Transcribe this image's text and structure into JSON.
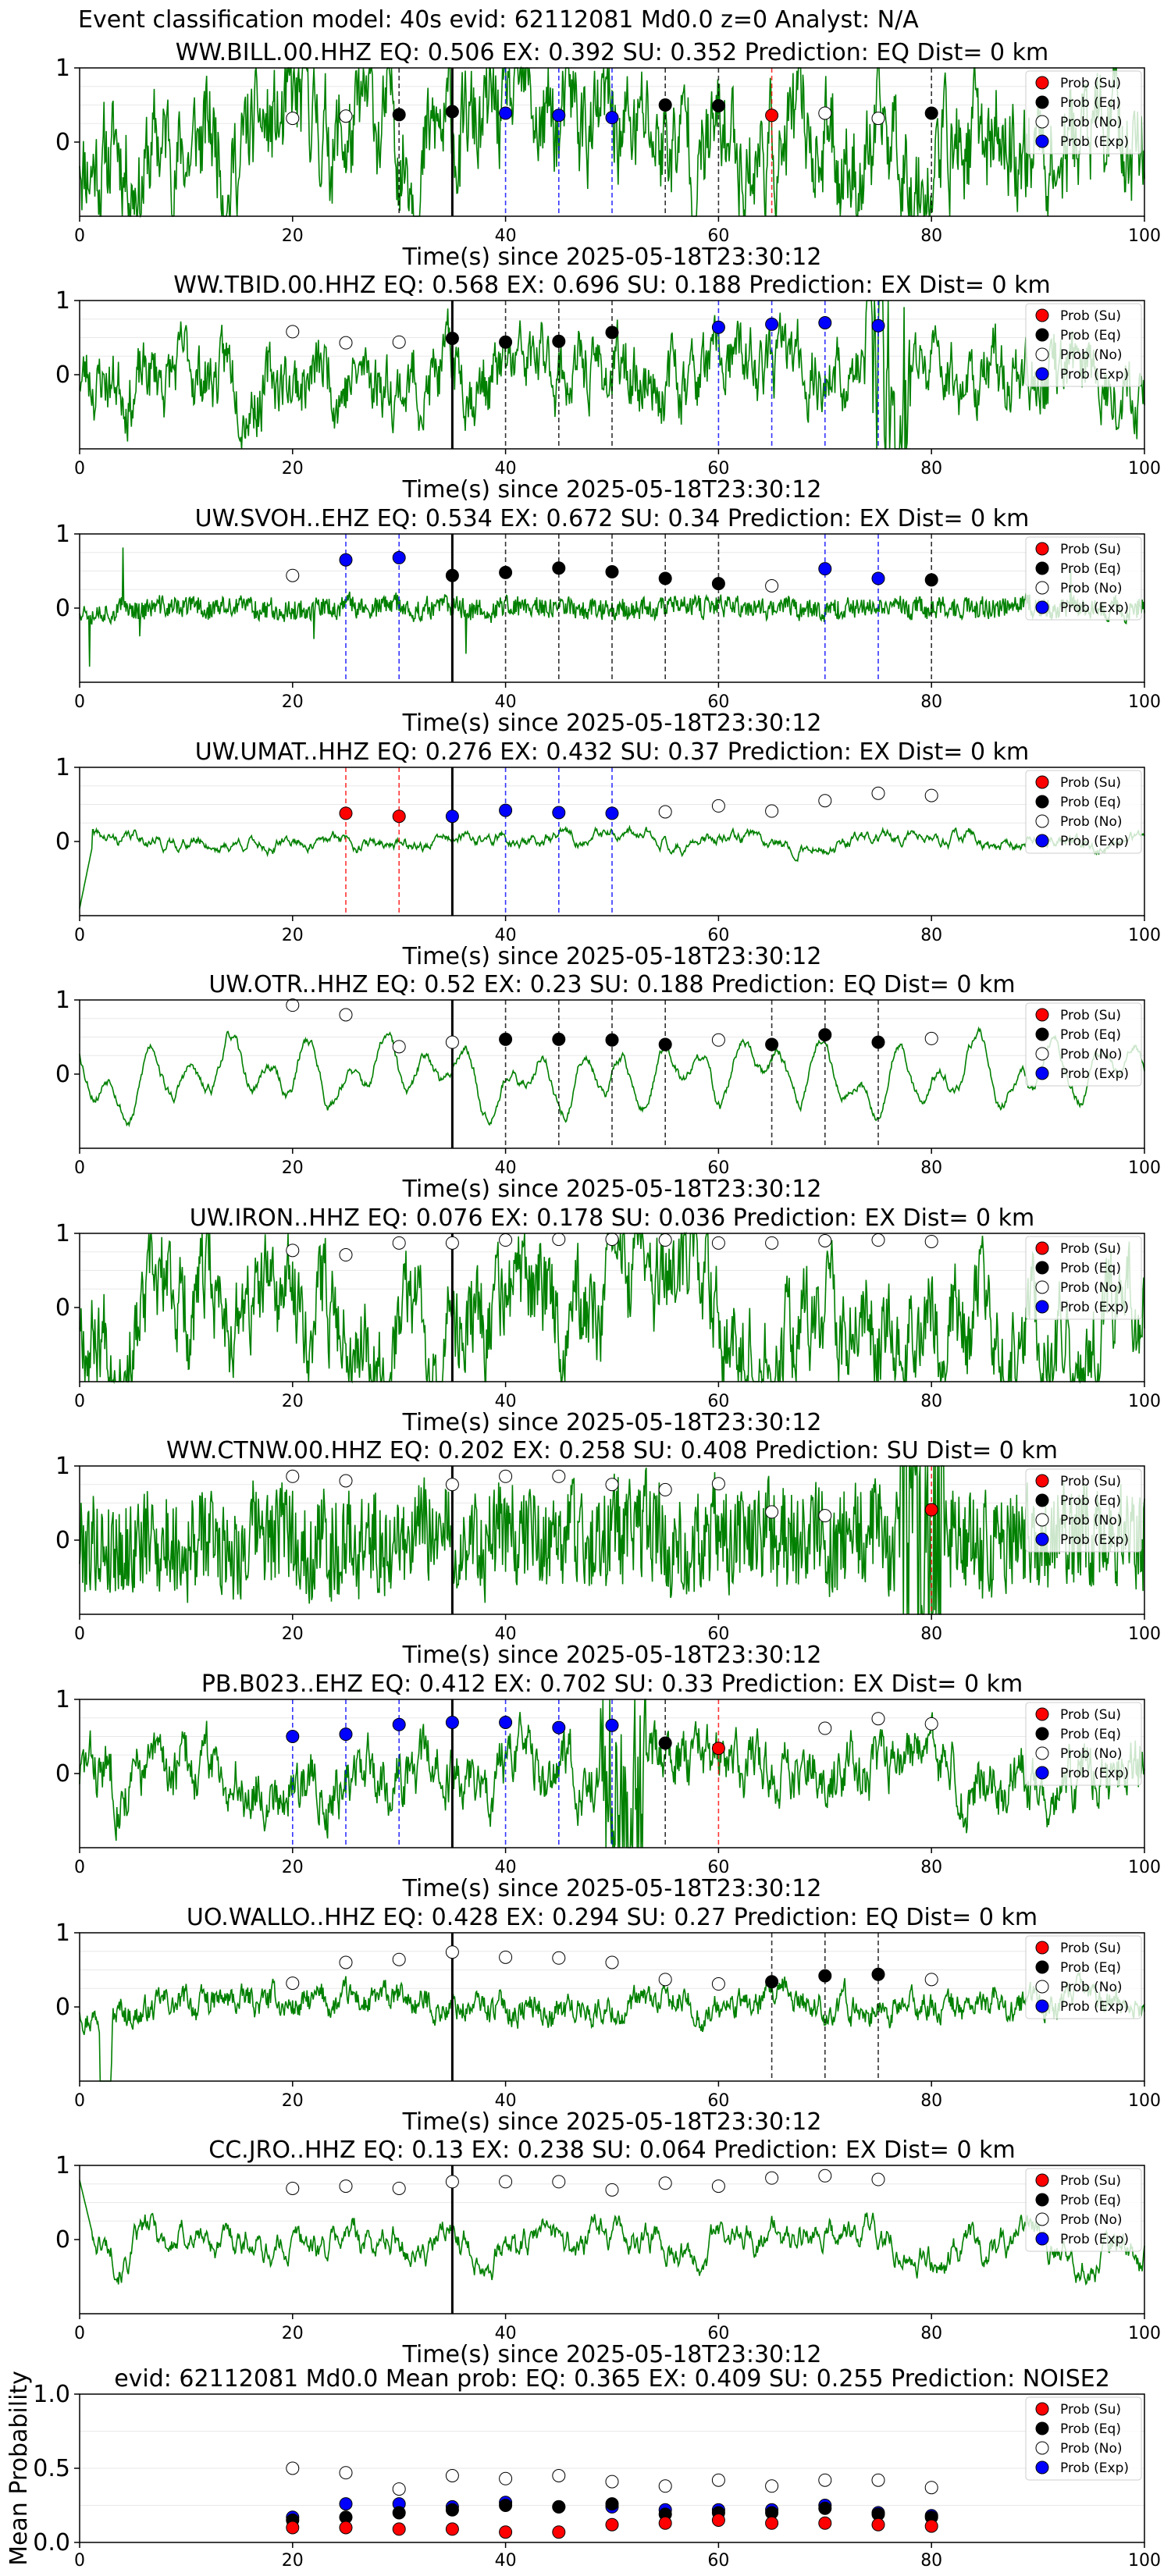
{
  "figure_title": "Event classification model: 40s evid: 62112081 Md0.0 z=0 Analyst: N/A",
  "legend_labels": [
    "Prob (Su)",
    "Prob (Eq)",
    "Prob (No)",
    "Prob (Exp)"
  ],
  "class_colors": {
    "su": "#ff0000",
    "eq": "#000000",
    "no": "#ffffff",
    "exp": "#0000ff"
  },
  "trace_color": "#008000",
  "chart_data": [
    {
      "type": "line",
      "title": "WW.BILL.00.HHZ   EQ: 0.506  EX: 0.392  SU: 0.352   Prediction: EQ    Dist= 0 km",
      "xlabel": "Time(s) since 2025-05-18T23:30:12",
      "xlim": [
        0,
        100
      ],
      "ylim": [
        -1,
        1
      ],
      "xticks": [
        "0",
        "20",
        "40",
        "60",
        "80",
        "100"
      ],
      "yticks": [
        "1",
        "0"
      ],
      "p_arrival": 35,
      "seed": 11,
      "amp": 0.6,
      "style": "noise",
      "points": [
        {
          "t": 20,
          "p": 0.32,
          "c": "no"
        },
        {
          "t": 25,
          "p": 0.35,
          "c": "no"
        },
        {
          "t": 30,
          "p": 0.37,
          "c": "eq"
        },
        {
          "t": 35,
          "p": 0.41,
          "c": "eq"
        },
        {
          "t": 40,
          "p": 0.39,
          "c": "exp"
        },
        {
          "t": 45,
          "p": 0.36,
          "c": "exp"
        },
        {
          "t": 50,
          "p": 0.33,
          "c": "exp"
        },
        {
          "t": 55,
          "p": 0.5,
          "c": "eq"
        },
        {
          "t": 60,
          "p": 0.49,
          "c": "eq"
        },
        {
          "t": 65,
          "p": 0.36,
          "c": "su"
        },
        {
          "t": 70,
          "p": 0.39,
          "c": "no"
        },
        {
          "t": 75,
          "p": 0.32,
          "c": "no"
        },
        {
          "t": 80,
          "p": 0.39,
          "c": "eq"
        }
      ]
    },
    {
      "type": "line",
      "title": "WW.TBID.00.HHZ   EQ: 0.568  EX: 0.696  SU: 0.188   Prediction: EX    Dist= 0 km",
      "xlabel": "Time(s) since 2025-05-18T23:30:12",
      "xlim": [
        0,
        100
      ],
      "ylim": [
        -1,
        1
      ],
      "xticks": [
        "0",
        "20",
        "40",
        "60",
        "80",
        "100"
      ],
      "yticks": [
        "1",
        "0"
      ],
      "p_arrival": 35,
      "seed": 23,
      "amp": 0.35,
      "style": "noise",
      "burst": 76,
      "points": [
        {
          "t": 20,
          "p": 0.58,
          "c": "no"
        },
        {
          "t": 25,
          "p": 0.43,
          "c": "no"
        },
        {
          "t": 30,
          "p": 0.44,
          "c": "no"
        },
        {
          "t": 35,
          "p": 0.49,
          "c": "eq"
        },
        {
          "t": 40,
          "p": 0.44,
          "c": "eq"
        },
        {
          "t": 45,
          "p": 0.45,
          "c": "eq"
        },
        {
          "t": 50,
          "p": 0.57,
          "c": "eq"
        },
        {
          "t": 60,
          "p": 0.64,
          "c": "exp"
        },
        {
          "t": 65,
          "p": 0.68,
          "c": "exp"
        },
        {
          "t": 70,
          "p": 0.7,
          "c": "exp"
        },
        {
          "t": 75,
          "p": 0.66,
          "c": "exp"
        }
      ]
    },
    {
      "type": "line",
      "title": "UW.SVOH..EHZ   EQ: 0.534  EX: 0.672  SU: 0.34   Prediction: EX    Dist= 0 km",
      "xlabel": "Time(s) since 2025-05-18T23:30:12",
      "xlim": [
        0,
        100
      ],
      "ylim": [
        -1,
        1
      ],
      "xticks": [
        "0",
        "20",
        "40",
        "60",
        "80",
        "100"
      ],
      "yticks": [
        "1",
        "0"
      ],
      "p_arrival": 35,
      "seed": 37,
      "amp": 0.18,
      "style": "spiky",
      "points": [
        {
          "t": 20,
          "p": 0.44,
          "c": "no"
        },
        {
          "t": 25,
          "p": 0.65,
          "c": "exp"
        },
        {
          "t": 30,
          "p": 0.68,
          "c": "exp"
        },
        {
          "t": 35,
          "p": 0.44,
          "c": "eq"
        },
        {
          "t": 40,
          "p": 0.48,
          "c": "eq"
        },
        {
          "t": 45,
          "p": 0.54,
          "c": "eq"
        },
        {
          "t": 50,
          "p": 0.49,
          "c": "eq"
        },
        {
          "t": 55,
          "p": 0.4,
          "c": "eq"
        },
        {
          "t": 60,
          "p": 0.33,
          "c": "eq"
        },
        {
          "t": 65,
          "p": 0.3,
          "c": "no"
        },
        {
          "t": 70,
          "p": 0.53,
          "c": "exp"
        },
        {
          "t": 75,
          "p": 0.4,
          "c": "exp"
        },
        {
          "t": 80,
          "p": 0.38,
          "c": "eq"
        }
      ]
    },
    {
      "type": "line",
      "title": "UW.UMAT..HHZ   EQ: 0.276  EX: 0.432  SU: 0.37   Prediction: EX    Dist= 0 km",
      "xlabel": "Time(s) since 2025-05-18T23:30:12",
      "xlim": [
        0,
        100
      ],
      "ylim": [
        -1,
        1
      ],
      "xticks": [
        "0",
        "20",
        "40",
        "60",
        "80",
        "100"
      ],
      "yticks": [
        "1",
        "0"
      ],
      "p_arrival": 35,
      "seed": 41,
      "amp": 0.14,
      "style": "smoothish",
      "start_drop": true,
      "points": [
        {
          "t": 25,
          "p": 0.38,
          "c": "su"
        },
        {
          "t": 30,
          "p": 0.34,
          "c": "su"
        },
        {
          "t": 35,
          "p": 0.34,
          "c": "exp"
        },
        {
          "t": 40,
          "p": 0.42,
          "c": "exp"
        },
        {
          "t": 45,
          "p": 0.39,
          "c": "exp"
        },
        {
          "t": 50,
          "p": 0.38,
          "c": "exp"
        },
        {
          "t": 55,
          "p": 0.4,
          "c": "no"
        },
        {
          "t": 60,
          "p": 0.48,
          "c": "no"
        },
        {
          "t": 65,
          "p": 0.41,
          "c": "no"
        },
        {
          "t": 70,
          "p": 0.55,
          "c": "no"
        },
        {
          "t": 75,
          "p": 0.65,
          "c": "no"
        },
        {
          "t": 80,
          "p": 0.62,
          "c": "no"
        }
      ]
    },
    {
      "type": "line",
      "title": "UW.OTR..HHZ   EQ: 0.52  EX: 0.23  SU: 0.188   Prediction: EQ    Dist= 0 km",
      "xlabel": "Time(s) since 2025-05-18T23:30:12",
      "xlim": [
        0,
        100
      ],
      "ylim": [
        -1,
        1
      ],
      "xticks": [
        "0",
        "20",
        "40",
        "60",
        "80",
        "100"
      ],
      "yticks": [
        "1",
        "0"
      ],
      "p_arrival": 35,
      "seed": 53,
      "amp": 0.55,
      "style": "smooth",
      "points": [
        {
          "t": 20,
          "p": 0.93,
          "c": "no"
        },
        {
          "t": 25,
          "p": 0.8,
          "c": "no"
        },
        {
          "t": 30,
          "p": 0.37,
          "c": "no"
        },
        {
          "t": 35,
          "p": 0.43,
          "c": "no"
        },
        {
          "t": 40,
          "p": 0.47,
          "c": "eq"
        },
        {
          "t": 45,
          "p": 0.47,
          "c": "eq"
        },
        {
          "t": 50,
          "p": 0.46,
          "c": "eq"
        },
        {
          "t": 55,
          "p": 0.4,
          "c": "eq"
        },
        {
          "t": 60,
          "p": 0.46,
          "c": "no"
        },
        {
          "t": 65,
          "p": 0.4,
          "c": "eq"
        },
        {
          "t": 70,
          "p": 0.53,
          "c": "eq"
        },
        {
          "t": 75,
          "p": 0.43,
          "c": "eq"
        },
        {
          "t": 80,
          "p": 0.48,
          "c": "no"
        }
      ]
    },
    {
      "type": "line",
      "title": "UW.IRON..HHZ   EQ: 0.076  EX: 0.178  SU: 0.036   Prediction: EX    Dist= 0 km",
      "xlabel": "Time(s) since 2025-05-18T23:30:12",
      "xlim": [
        0,
        100
      ],
      "ylim": [
        -1,
        1
      ],
      "xticks": [
        "0",
        "20",
        "40",
        "60",
        "80",
        "100"
      ],
      "yticks": [
        "1",
        "0"
      ],
      "p_arrival": 35,
      "seed": 67,
      "amp": 0.55,
      "style": "noise",
      "points": [
        {
          "t": 20,
          "p": 0.77,
          "c": "no"
        },
        {
          "t": 25,
          "p": 0.71,
          "c": "no"
        },
        {
          "t": 30,
          "p": 0.87,
          "c": "no"
        },
        {
          "t": 35,
          "p": 0.87,
          "c": "no"
        },
        {
          "t": 40,
          "p": 0.91,
          "c": "no"
        },
        {
          "t": 45,
          "p": 0.92,
          "c": "no"
        },
        {
          "t": 50,
          "p": 0.92,
          "c": "no"
        },
        {
          "t": 55,
          "p": 0.91,
          "c": "no"
        },
        {
          "t": 60,
          "p": 0.87,
          "c": "no"
        },
        {
          "t": 65,
          "p": 0.87,
          "c": "no"
        },
        {
          "t": 70,
          "p": 0.9,
          "c": "no"
        },
        {
          "t": 75,
          "p": 0.91,
          "c": "no"
        },
        {
          "t": 80,
          "p": 0.89,
          "c": "no"
        }
      ]
    },
    {
      "type": "line",
      "title": "WW.CTNW.00.HHZ   EQ: 0.202  EX: 0.258  SU: 0.408   Prediction: SU   Dist= 0 km",
      "xlabel": "Time(s) since 2025-05-18T23:30:12",
      "xlim": [
        0,
        100
      ],
      "ylim": [
        -1,
        1
      ],
      "xticks": [
        "0",
        "20",
        "40",
        "60",
        "80",
        "100"
      ],
      "yticks": [
        "1",
        "0"
      ],
      "p_arrival": 35,
      "seed": 79,
      "amp": 0.6,
      "style": "dense",
      "burst": 79,
      "points": [
        {
          "t": 20,
          "p": 0.86,
          "c": "no"
        },
        {
          "t": 25,
          "p": 0.8,
          "c": "no"
        },
        {
          "t": 35,
          "p": 0.75,
          "c": "no"
        },
        {
          "t": 40,
          "p": 0.86,
          "c": "no"
        },
        {
          "t": 45,
          "p": 0.86,
          "c": "no"
        },
        {
          "t": 50,
          "p": 0.75,
          "c": "no"
        },
        {
          "t": 55,
          "p": 0.68,
          "c": "no"
        },
        {
          "t": 60,
          "p": 0.76,
          "c": "no"
        },
        {
          "t": 65,
          "p": 0.38,
          "c": "no"
        },
        {
          "t": 70,
          "p": 0.33,
          "c": "no"
        },
        {
          "t": 80,
          "p": 0.41,
          "c": "su"
        }
      ]
    },
    {
      "type": "line",
      "title": "PB.B023..EHZ   EQ: 0.412  EX: 0.702  SU: 0.33   Prediction: EX    Dist= 0 km",
      "xlabel": "Time(s) since 2025-05-18T23:30:12",
      "xlim": [
        0,
        100
      ],
      "ylim": [
        -1,
        1
      ],
      "xticks": [
        "0",
        "20",
        "40",
        "60",
        "80",
        "100"
      ],
      "yticks": [
        "1",
        "0"
      ],
      "p_arrival": 35,
      "seed": 83,
      "amp": 0.3,
      "style": "noise",
      "burst": 51,
      "points": [
        {
          "t": 20,
          "p": 0.5,
          "c": "exp"
        },
        {
          "t": 25,
          "p": 0.53,
          "c": "exp"
        },
        {
          "t": 30,
          "p": 0.66,
          "c": "exp"
        },
        {
          "t": 35,
          "p": 0.69,
          "c": "exp"
        },
        {
          "t": 40,
          "p": 0.69,
          "c": "exp"
        },
        {
          "t": 45,
          "p": 0.62,
          "c": "exp"
        },
        {
          "t": 50,
          "p": 0.65,
          "c": "exp"
        },
        {
          "t": 55,
          "p": 0.41,
          "c": "eq"
        },
        {
          "t": 60,
          "p": 0.34,
          "c": "su"
        },
        {
          "t": 70,
          "p": 0.61,
          "c": "no"
        },
        {
          "t": 75,
          "p": 0.74,
          "c": "no"
        },
        {
          "t": 80,
          "p": 0.67,
          "c": "no"
        }
      ]
    },
    {
      "type": "line",
      "title": "UO.WALLO..HHZ   EQ: 0.428  EX: 0.294  SU: 0.27   Prediction: EQ    Dist= 0 km",
      "xlabel": "Time(s) since 2025-05-18T23:30:12",
      "xlim": [
        0,
        100
      ],
      "ylim": [
        -1,
        1
      ],
      "xticks": [
        "0",
        "20",
        "40",
        "60",
        "80",
        "100"
      ],
      "yticks": [
        "1",
        "0"
      ],
      "p_arrival": 35,
      "seed": 97,
      "amp": 0.15,
      "style": "noise",
      "spike_at": 2.5,
      "points": [
        {
          "t": 20,
          "p": 0.32,
          "c": "no"
        },
        {
          "t": 25,
          "p": 0.6,
          "c": "no"
        },
        {
          "t": 30,
          "p": 0.64,
          "c": "no"
        },
        {
          "t": 35,
          "p": 0.74,
          "c": "no"
        },
        {
          "t": 40,
          "p": 0.67,
          "c": "no"
        },
        {
          "t": 45,
          "p": 0.66,
          "c": "no"
        },
        {
          "t": 50,
          "p": 0.6,
          "c": "no"
        },
        {
          "t": 55,
          "p": 0.37,
          "c": "no"
        },
        {
          "t": 60,
          "p": 0.31,
          "c": "no"
        },
        {
          "t": 65,
          "p": 0.34,
          "c": "eq"
        },
        {
          "t": 70,
          "p": 0.42,
          "c": "eq"
        },
        {
          "t": 75,
          "p": 0.44,
          "c": "eq"
        },
        {
          "t": 80,
          "p": 0.37,
          "c": "no"
        }
      ]
    },
    {
      "type": "line",
      "title": "CC.JRO..HHZ   EQ: 0.13  EX: 0.238  SU: 0.064   Prediction: EX    Dist= 0 km",
      "xlabel": "Time(s) since 2025-05-18T23:30:12",
      "xlim": [
        0,
        100
      ],
      "ylim": [
        -1,
        1
      ],
      "xticks": [
        "0",
        "20",
        "40",
        "60",
        "80",
        "100"
      ],
      "yticks": [
        "1",
        "0"
      ],
      "p_arrival": 35,
      "seed": 101,
      "amp": 0.35,
      "style": "smoothish",
      "start_high": true,
      "points": [
        {
          "t": 20,
          "p": 0.69,
          "c": "no"
        },
        {
          "t": 25,
          "p": 0.72,
          "c": "no"
        },
        {
          "t": 30,
          "p": 0.69,
          "c": "no"
        },
        {
          "t": 35,
          "p": 0.78,
          "c": "no"
        },
        {
          "t": 40,
          "p": 0.78,
          "c": "no"
        },
        {
          "t": 45,
          "p": 0.78,
          "c": "no"
        },
        {
          "t": 50,
          "p": 0.67,
          "c": "no"
        },
        {
          "t": 55,
          "p": 0.76,
          "c": "no"
        },
        {
          "t": 60,
          "p": 0.72,
          "c": "no"
        },
        {
          "t": 65,
          "p": 0.83,
          "c": "no"
        },
        {
          "t": 70,
          "p": 0.86,
          "c": "no"
        },
        {
          "t": 75,
          "p": 0.81,
          "c": "no"
        }
      ]
    },
    {
      "type": "scatter",
      "title": "evid: 62112081  Md0.0   Mean prob:   EQ: 0.365  EX: 0.409  SU: 0.255   Prediction: NOISE2",
      "ylabel": "Mean Probability",
      "xlim": [
        0,
        100
      ],
      "ylim": [
        0,
        1
      ],
      "xticks": [
        "0",
        "20",
        "40",
        "60",
        "80",
        "100"
      ],
      "yticks": [
        "0.0",
        "0.5",
        "1.0"
      ],
      "x": [
        20,
        25,
        30,
        35,
        40,
        45,
        50,
        55,
        60,
        65,
        70,
        75,
        80
      ],
      "series": [
        {
          "name": "Prob (No)",
          "c": "no",
          "values": [
            0.5,
            0.47,
            0.36,
            0.45,
            0.43,
            0.45,
            0.41,
            0.38,
            0.42,
            0.38,
            0.42,
            0.42,
            0.37
          ]
        },
        {
          "name": "Prob (Exp)",
          "c": "exp",
          "values": [
            0.17,
            0.26,
            0.26,
            0.24,
            0.27,
            0.24,
            0.24,
            0.22,
            0.22,
            0.22,
            0.25,
            0.2,
            0.18
          ]
        },
        {
          "name": "Prob (Eq)",
          "c": "eq",
          "values": [
            0.15,
            0.17,
            0.2,
            0.22,
            0.25,
            0.24,
            0.26,
            0.19,
            0.2,
            0.2,
            0.23,
            0.19,
            0.17
          ]
        },
        {
          "name": "Prob (Su)",
          "c": "su",
          "values": [
            0.1,
            0.1,
            0.09,
            0.09,
            0.07,
            0.07,
            0.12,
            0.13,
            0.15,
            0.13,
            0.13,
            0.12,
            0.11
          ]
        }
      ]
    }
  ]
}
